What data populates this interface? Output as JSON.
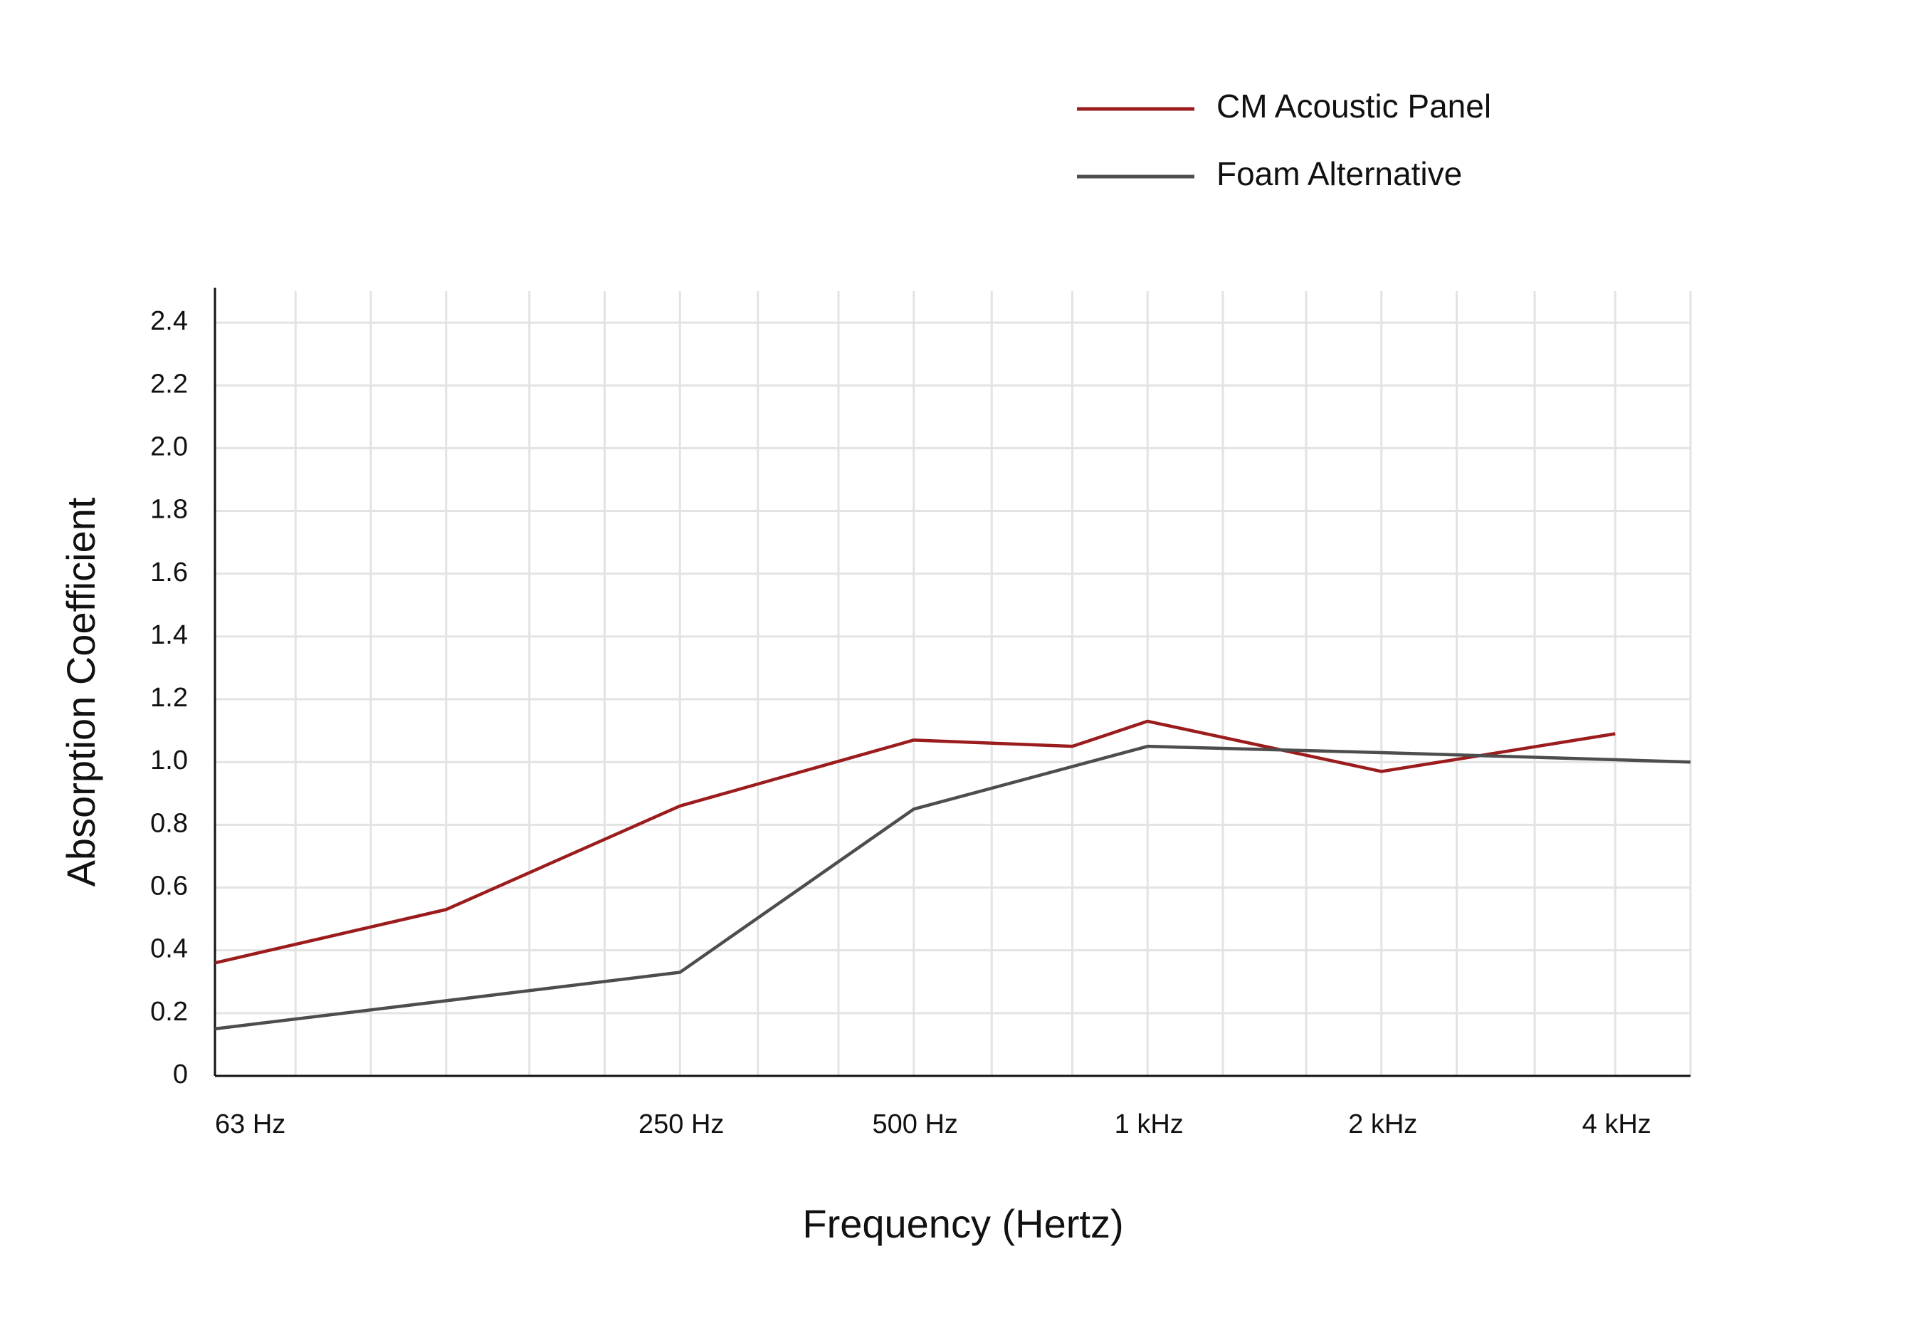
{
  "chart_data": {
    "type": "line",
    "ylabel": "Absorption Coefficient",
    "xlabel": "Frequency (Hertz)",
    "xscale": "log",
    "xlim": [
      63,
      5000
    ],
    "xticks": [
      {
        "value": 63,
        "label": "63 Hz"
      },
      {
        "value": 250,
        "label": "250 Hz"
      },
      {
        "value": 500,
        "label": "500 Hz"
      },
      {
        "value": 1000,
        "label": "1 kHz"
      },
      {
        "value": 2000,
        "label": "2 kHz"
      },
      {
        "value": 4000,
        "label": "4 kHz"
      }
    ],
    "xgrid_minor": [
      80,
      100,
      125,
      160,
      200,
      315,
      400,
      630,
      800,
      1250,
      1600,
      2500,
      3150,
      5000
    ],
    "ylim": [
      0,
      2.5
    ],
    "yticks": [
      0,
      {
        "value": 0.2,
        "label": "0.2"
      },
      {
        "value": 0.4,
        "label": "0.4"
      },
      {
        "value": 0.6,
        "label": "0.6"
      },
      {
        "value": 0.8,
        "label": "0.8"
      },
      {
        "value": 1.0,
        "label": "1.0"
      },
      {
        "value": 1.2,
        "label": "1.2"
      },
      {
        "value": 1.4,
        "label": "1.4"
      },
      {
        "value": 1.6,
        "label": "1.6"
      },
      {
        "value": 1.8,
        "label": "1.8"
      },
      {
        "value": 2.0,
        "label": "2.0"
      },
      {
        "value": 2.2,
        "label": "2.2"
      },
      {
        "value": 2.4,
        "label": "2.4"
      }
    ],
    "grid": true,
    "legend": "top-right",
    "series": [
      {
        "name": "CM Acoustic Panel",
        "color": "#9b1c1c",
        "x": [
          63,
          125,
          250,
          500,
          800,
          1000,
          2000,
          4000
        ],
        "values": [
          0.36,
          0.53,
          0.86,
          1.07,
          1.05,
          1.13,
          0.97,
          1.09
        ]
      },
      {
        "name": "Foam Alternative",
        "color": "#4d4d4d",
        "x": [
          63,
          250,
          500,
          1000,
          2000,
          5000
        ],
        "values": [
          0.15,
          0.33,
          0.85,
          1.05,
          1.03,
          1.0
        ]
      }
    ]
  }
}
